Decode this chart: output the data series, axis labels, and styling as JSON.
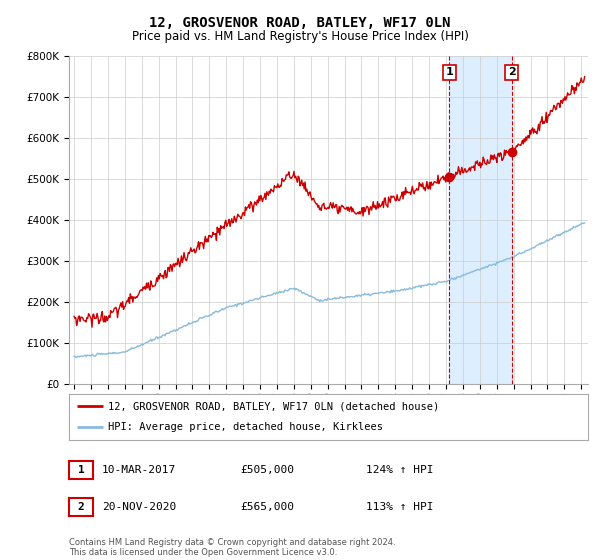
{
  "title": "12, GROSVENOR ROAD, BATLEY, WF17 0LN",
  "subtitle": "Price paid vs. HM Land Registry's House Price Index (HPI)",
  "legend_line1": "12, GROSVENOR ROAD, BATLEY, WF17 0LN (detached house)",
  "legend_line2": "HPI: Average price, detached house, Kirklees",
  "annotation1_label": "1",
  "annotation1_date": "10-MAR-2017",
  "annotation1_price": "£505,000",
  "annotation1_hpi": "124% ↑ HPI",
  "annotation1_year": 2017.19,
  "annotation1_value": 505000,
  "annotation2_label": "2",
  "annotation2_date": "20-NOV-2020",
  "annotation2_price": "£565,000",
  "annotation2_hpi": "113% ↑ HPI",
  "annotation2_year": 2020.89,
  "annotation2_value": 565000,
  "footer_line1": "Contains HM Land Registry data © Crown copyright and database right 2024.",
  "footer_line2": "This data is licensed under the Open Government Licence v3.0.",
  "red_color": "#cc0000",
  "blue_color": "#88bbdd",
  "shaded_color": "#ddeeff",
  "grid_color": "#cccccc",
  "background_color": "#ffffff",
  "ylim": [
    0,
    800000
  ],
  "xlim_start": 1994.7,
  "xlim_end": 2025.4,
  "yticks": [
    0,
    100000,
    200000,
    300000,
    400000,
    500000,
    600000,
    700000,
    800000
  ]
}
